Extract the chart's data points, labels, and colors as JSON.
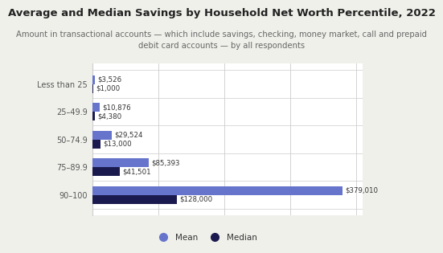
{
  "title": "Average and Median Savings by Household Net Worth Percentile, 2022",
  "subtitle": "Amount in transactional accounts — which include savings, checking, money market, call and prepaid\ndebit card accounts — by all respondents",
  "categories": [
    "Less than 25",
    "25–49.9",
    "50–74.9",
    "75–89.9",
    "90–100"
  ],
  "mean_values": [
    3526,
    10876,
    29524,
    85393,
    379010
  ],
  "median_values": [
    1000,
    4380,
    13000,
    41501,
    128000
  ],
  "mean_labels": [
    "$3,526",
    "$10,876",
    "$29,524",
    "$85,393",
    "$379,010"
  ],
  "median_labels": [
    "$1,000",
    "$4,380",
    "$13,000",
    "$41,501",
    "$128,000"
  ],
  "mean_color": "#6674cc",
  "median_color": "#1a1a4e",
  "outer_bg": "#f0f0eb",
  "plot_bg": "#ffffff",
  "bar_height": 0.32,
  "xlim": [
    0,
    410000
  ],
  "legend_mean": "Mean",
  "legend_median": "Median",
  "title_fontsize": 9.5,
  "subtitle_fontsize": 7.2,
  "label_fontsize": 6.2,
  "tick_fontsize": 7.0,
  "legend_fontsize": 7.5
}
